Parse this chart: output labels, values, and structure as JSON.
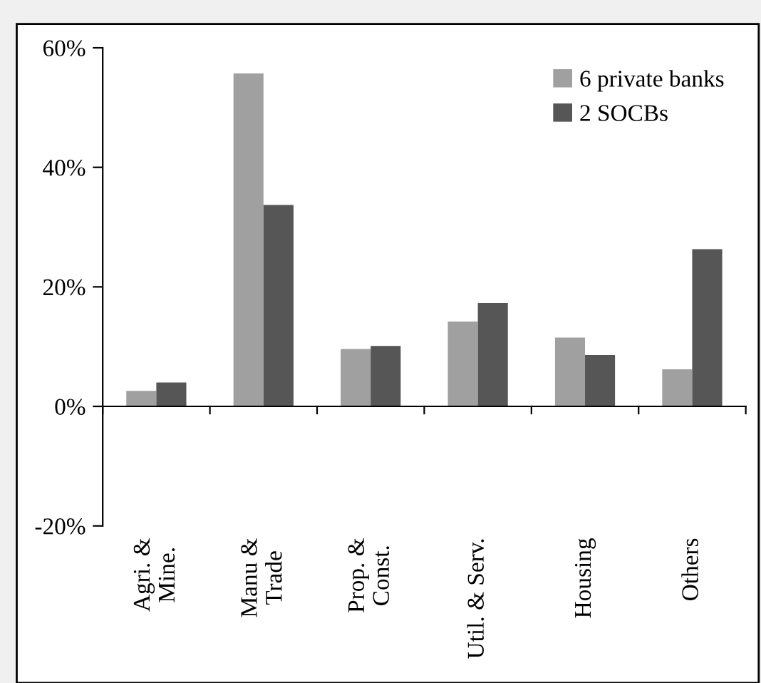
{
  "chart_data": {
    "type": "bar",
    "categories": [
      "Agri. &\nMine.",
      "Manu &\nTrade",
      "Prop. &\nConst.",
      "Util. & Serv.",
      "Housing",
      "Others"
    ],
    "series": [
      {
        "name": "6 private banks",
        "color": "#a0a0a0",
        "values": [
          2.6,
          55.7,
          9.6,
          14.2,
          11.5,
          6.2
        ]
      },
      {
        "name": "2 SOCBs",
        "color": "#565656",
        "values": [
          4.0,
          33.7,
          10.1,
          17.3,
          8.6,
          26.3
        ]
      }
    ],
    "ylim": [
      -20,
      60
    ],
    "yticks": [
      {
        "value": -20,
        "label": "-20%"
      },
      {
        "value": 0,
        "label": "0%"
      },
      {
        "value": 20,
        "label": "20%"
      },
      {
        "value": 40,
        "label": "40%"
      },
      {
        "value": 60,
        "label": "60%"
      }
    ],
    "legend": "top right"
  }
}
